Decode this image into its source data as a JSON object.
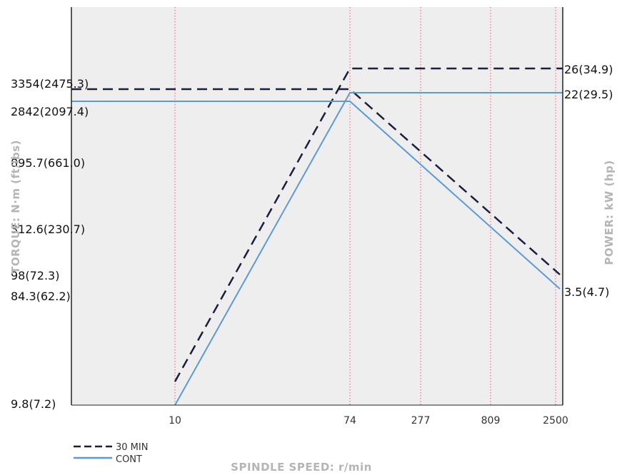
{
  "chart_data": {
    "type": "line",
    "xlabel": "SPINDLE SPEED: r/min",
    "ylabel_left": "TORQUE: N·m (ft/lbs)",
    "ylabel_right": "POWER: kW (hp)",
    "x_ticks": [
      "10",
      "74",
      "277",
      "809",
      "2500"
    ],
    "left_ticks": [
      "3354(2475.3)",
      "2842(2097.4)",
      "895.7(661.0)",
      "312.6(230.7)",
      "98(72.3)",
      "84.3(62.2)",
      "9.8(7.2)"
    ],
    "right_ticks": [
      "26(34.9)",
      "22(29.5)",
      "3.5(4.7)"
    ],
    "series": [
      {
        "name": "30 MIN",
        "color": "#1a1f3d",
        "dash": true,
        "torque": [
          {
            "x": 0,
            "y": 3354
          },
          {
            "x": 74,
            "y": 3354
          },
          {
            "x": 2500,
            "y": 98
          }
        ],
        "power": [
          {
            "x": 10,
            "y": 3.5
          },
          {
            "x": 74,
            "y": 26
          },
          {
            "x": 2500,
            "y": 26
          }
        ]
      },
      {
        "name": "CONT",
        "color": "#5b9bd5",
        "dash": false,
        "torque": [
          {
            "x": 0,
            "y": 2842
          },
          {
            "x": 74,
            "y": 2842
          },
          {
            "x": 2500,
            "y": 84.3
          }
        ],
        "power": [
          {
            "x": 10,
            "y": 0
          },
          {
            "x": 74,
            "y": 22
          },
          {
            "x": 2500,
            "y": 22
          }
        ]
      }
    ],
    "grid_x": true,
    "legend_position": "bottom-left"
  }
}
